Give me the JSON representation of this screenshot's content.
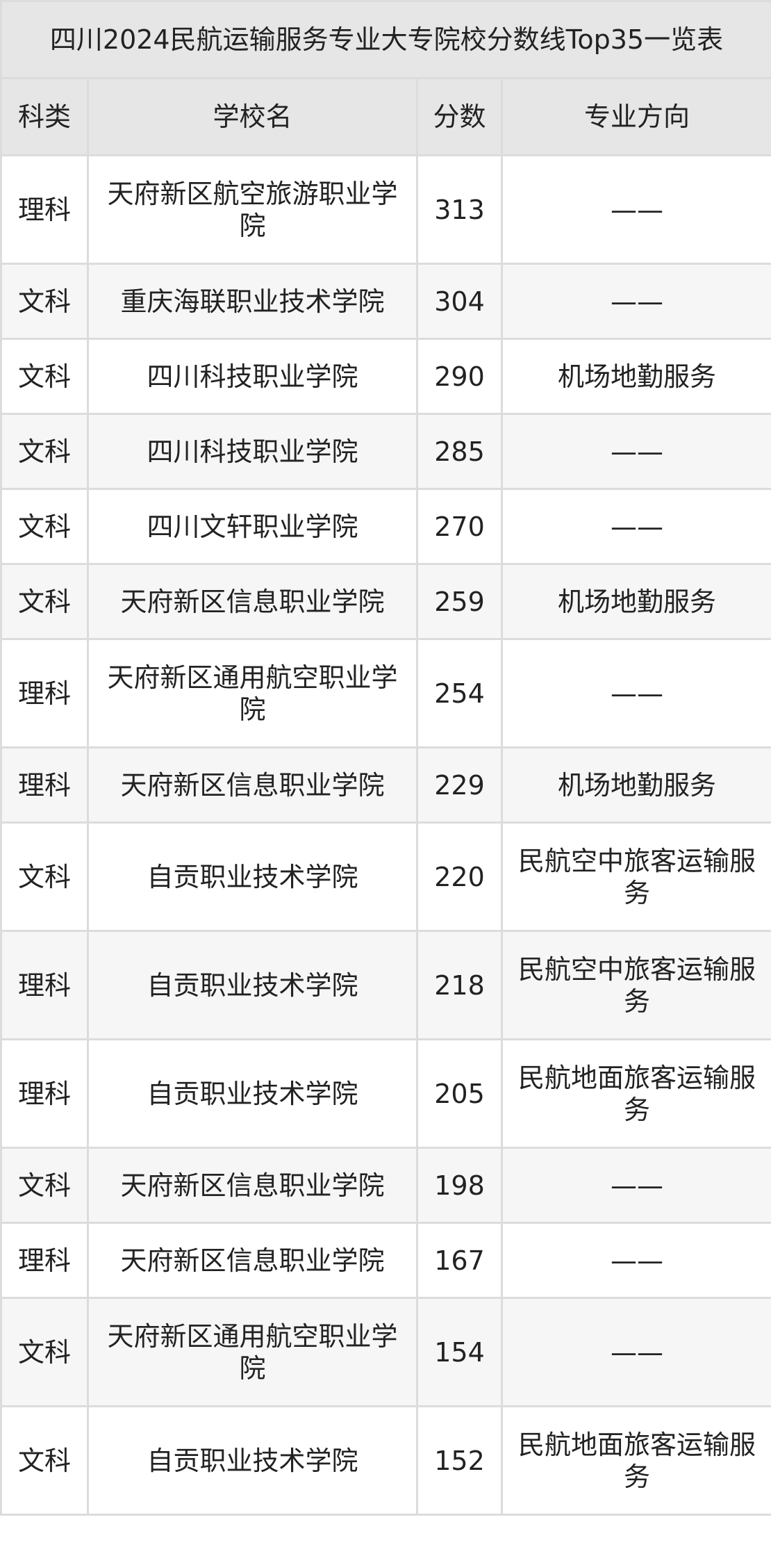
{
  "title": "四川2024民航运输服务专业大专院校分数线Top35一览表",
  "headers": [
    "科类",
    "学校名",
    "分数",
    "专业方向"
  ],
  "rows": [
    {
      "type": "理科",
      "school": "天府新区航空旅游职业学院",
      "score": "313",
      "major": "——"
    },
    {
      "type": "文科",
      "school": "重庆海联职业技术学院",
      "score": "304",
      "major": "——"
    },
    {
      "type": "文科",
      "school": "四川科技职业学院",
      "score": "290",
      "major": "机场地勤服务"
    },
    {
      "type": "文科",
      "school": "四川科技职业学院",
      "score": "285",
      "major": "——"
    },
    {
      "type": "文科",
      "school": "四川文轩职业学院",
      "score": "270",
      "major": "——"
    },
    {
      "type": "文科",
      "school": "天府新区信息职业学院",
      "score": "259",
      "major": "机场地勤服务"
    },
    {
      "type": "理科",
      "school": "天府新区通用航空职业学院",
      "score": "254",
      "major": "——"
    },
    {
      "type": "理科",
      "school": "天府新区信息职业学院",
      "score": "229",
      "major": "机场地勤服务"
    },
    {
      "type": "文科",
      "school": "自贡职业技术学院",
      "score": "220",
      "major": "民航空中旅客运输服务"
    },
    {
      "type": "理科",
      "school": "自贡职业技术学院",
      "score": "218",
      "major": "民航空中旅客运输服务"
    },
    {
      "type": "理科",
      "school": "自贡职业技术学院",
      "score": "205",
      "major": "民航地面旅客运输服务"
    },
    {
      "type": "文科",
      "school": "天府新区信息职业学院",
      "score": "198",
      "major": "——"
    },
    {
      "type": "理科",
      "school": "天府新区信息职业学院",
      "score": "167",
      "major": "——"
    },
    {
      "type": "文科",
      "school": "天府新区通用航空职业学院",
      "score": "154",
      "major": "——"
    },
    {
      "type": "文科",
      "school": "自贡职业技术学院",
      "score": "152",
      "major": "民航地面旅客运输服务"
    }
  ]
}
